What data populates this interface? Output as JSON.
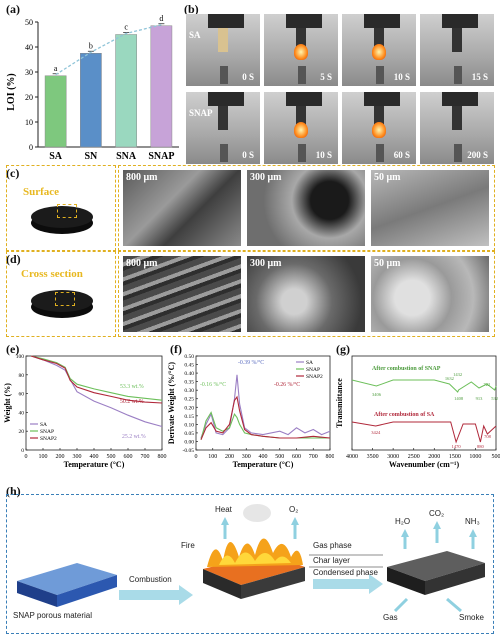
{
  "panels": {
    "a": "(a)",
    "b": "(b)",
    "c": "(c)",
    "d": "(d)",
    "e": "(e)",
    "f": "(f)",
    "g": "(g)",
    "h": "(h)"
  },
  "colors": {
    "sa": "#7ec87e",
    "sn": "#5a8fc8",
    "sna": "#9ad8bf",
    "snap": "#c7a3d8",
    "dash_gold": "#e0b020",
    "frame_blue": "#3a7fb8"
  },
  "chart_a": {
    "ylabel": "LOI (%)",
    "ylim": [
      0,
      50
    ],
    "yticks": [
      "0",
      "10",
      "20",
      "30",
      "40",
      "50"
    ],
    "categories": [
      "SA",
      "SN",
      "SNA",
      "SNAP"
    ],
    "values": [
      28.5,
      37.5,
      45.0,
      48.5
    ],
    "letters": [
      "a",
      "b",
      "c",
      "d"
    ]
  },
  "burning": {
    "row1_label": "SA",
    "row2_label": "SNAP",
    "row1_times": [
      "0 S",
      "5 S",
      "10 S",
      "15 S"
    ],
    "row2_times": [
      "0 S",
      "10 S",
      "60 S",
      "200 S"
    ]
  },
  "sem": {
    "surface_label": "Surface",
    "cross_label": "Cross section",
    "scales": [
      "800 μm",
      "300 μm",
      "50 μm"
    ]
  },
  "chart_e": {
    "type": "line",
    "xlabel": "Temperature (°C)",
    "ylabel": "Weight (%)",
    "xlim": [
      0,
      800
    ],
    "ylim": [
      0,
      100
    ],
    "xticks": [
      "0",
      "100",
      "200",
      "300",
      "400",
      "500",
      "600",
      "700",
      "800"
    ],
    "yticks": [
      "0",
      "20",
      "40",
      "60",
      "80",
      "100"
    ],
    "legend": [
      "SA",
      "SNAP",
      "SNAP2"
    ],
    "annotations": [
      "53.3 wt.%",
      "50.2 wt.%",
      "25.2 wt.%"
    ],
    "series": [
      {
        "name": "SA",
        "color": "#9b7fc4",
        "x": [
          30,
          100,
          180,
          230,
          260,
          300,
          400,
          500,
          600,
          700,
          800
        ],
        "y": [
          100,
          96,
          90,
          85,
          75,
          62,
          52,
          45,
          37,
          30,
          25
        ]
      },
      {
        "name": "SNAP",
        "color": "#6cbf5a",
        "x": [
          30,
          100,
          180,
          230,
          260,
          300,
          400,
          500,
          600,
          700,
          800
        ],
        "y": [
          100,
          97,
          93,
          88,
          76,
          70,
          65,
          61,
          57,
          55,
          53
        ]
      },
      {
        "name": "SNAP2",
        "color": "#b0283a",
        "x": [
          30,
          100,
          180,
          230,
          260,
          300,
          400,
          500,
          600,
          700,
          800
        ],
        "y": [
          100,
          96,
          92,
          87,
          74,
          67,
          61,
          57,
          53,
          51,
          50
        ]
      }
    ]
  },
  "chart_f": {
    "type": "line",
    "xlabel": "Temperature (°C)",
    "ylabel": "Derivate Weight (%/°C)",
    "xlim": [
      0,
      800
    ],
    "ylim": [
      -0.05,
      0.5
    ],
    "xticks": [
      "0",
      "100",
      "200",
      "300",
      "400",
      "500",
      "600",
      "700",
      "800"
    ],
    "yticks": [
      "-0.05",
      "0.00",
      "0.05",
      "0.10",
      "0.15",
      "0.20",
      "0.25",
      "0.30",
      "0.35",
      "0.40",
      "0.45",
      "0.50"
    ],
    "legend": [
      "SA",
      "SNAP",
      "SNAP2"
    ],
    "annotations": [
      "-0.39 %/°C",
      "-0.16 %/°C",
      "-0.26 %/°C"
    ],
    "series": [
      {
        "name": "SA",
        "color": "#9b7fc4",
        "x": [
          30,
          60,
          90,
          120,
          160,
          200,
          230,
          245,
          260,
          290,
          330,
          400,
          500,
          550,
          600,
          650,
          700,
          750,
          800
        ],
        "y": [
          0.02,
          0.1,
          0.16,
          0.05,
          0.04,
          0.08,
          0.25,
          0.39,
          0.22,
          0.08,
          0.05,
          0.04,
          0.06,
          0.04,
          0.08,
          0.05,
          0.07,
          0.04,
          0.06
        ]
      },
      {
        "name": "SNAP",
        "color": "#6cbf5a",
        "x": [
          30,
          60,
          90,
          120,
          160,
          200,
          230,
          245,
          260,
          290,
          330,
          400,
          500,
          600,
          700,
          800
        ],
        "y": [
          0.01,
          0.12,
          0.17,
          0.08,
          0.06,
          0.08,
          0.16,
          0.14,
          0.1,
          0.05,
          0.04,
          0.03,
          0.02,
          0.02,
          0.02,
          0.02
        ]
      },
      {
        "name": "SNAP2",
        "color": "#b0283a",
        "x": [
          30,
          60,
          90,
          120,
          160,
          200,
          230,
          245,
          260,
          290,
          330,
          400,
          500,
          600,
          700,
          800
        ],
        "y": [
          0.01,
          0.08,
          0.11,
          0.06,
          0.05,
          0.1,
          0.24,
          0.26,
          0.18,
          0.07,
          0.04,
          0.03,
          0.02,
          0.02,
          0.03,
          0.02
        ]
      }
    ]
  },
  "chart_g": {
    "type": "line",
    "xlabel": "Wavenumber (cm⁻¹)",
    "ylabel": "Transmittance",
    "xticks": [
      "4000",
      "3500",
      "3000",
      "2500",
      "2000",
      "1500",
      "1000",
      "500"
    ],
    "top_label": "After combustion of SNAP",
    "bottom_label": "After combustion of SA",
    "top_peaks": [
      "3406",
      "1632",
      "1432",
      "1408",
      "913",
      "722",
      "532"
    ],
    "bottom_peaks": [
      "3424",
      "1470",
      "880",
      "708"
    ]
  },
  "schematic": {
    "material_label": "SNAP porous material",
    "combustion_label": "Combustion",
    "fire_label": "Fire",
    "heat_label": "Heat",
    "o2_label": "O₂",
    "gas_phase": "Gas phase",
    "char_layer": "Char layer",
    "condensed_phase": "Condensed phase",
    "h2o_label": "H₂O",
    "co2_label": "CO₂",
    "nh3_label": "NH₃",
    "gas_label": "Gas",
    "smoke_label": "Smoke"
  }
}
